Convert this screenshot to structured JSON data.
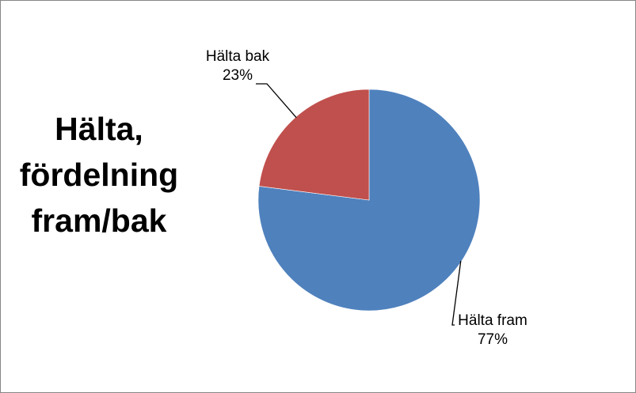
{
  "chart_data": {
    "type": "pie",
    "title_lines": [
      "Hälta,",
      "fördelning",
      "fram/bak"
    ],
    "start_angle_deg": 0,
    "direction": "clockwise",
    "slices": [
      {
        "name": "Hälta fram",
        "value": 77,
        "label": "77%",
        "color": "#4F81BD"
      },
      {
        "name": "Hälta bak",
        "value": 23,
        "label": "23%",
        "color": "#C0504D"
      }
    ],
    "legend": "none",
    "data_labels": "outside with leader lines"
  }
}
